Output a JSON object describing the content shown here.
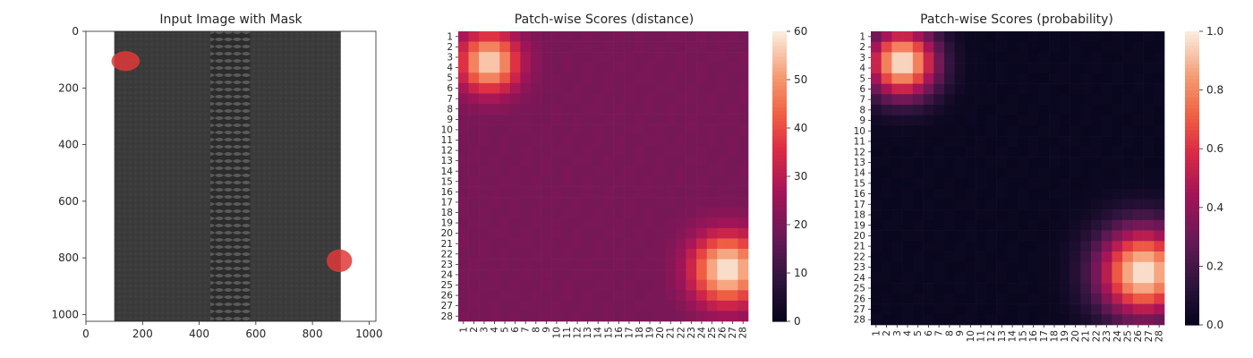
{
  "chart_data": [
    {
      "type": "image",
      "title": "Input Image with Mask",
      "xlim": [
        0,
        1024
      ],
      "ylim": [
        1024,
        0
      ],
      "xticks": [
        0,
        200,
        400,
        600,
        800,
        1000
      ],
      "yticks": [
        0,
        200,
        400,
        600,
        800,
        1000
      ],
      "image_extent": {
        "x_start": 100,
        "x_end": 900,
        "y_start": 0,
        "y_end": 1024
      },
      "colors": {
        "fabric": "#3b3b3b",
        "zipper_teeth": "#2a2a2a",
        "mask": "#e03a3a"
      },
      "mask_regions": [
        {
          "x": [
            90,
            190
          ],
          "y": [
            70,
            140
          ]
        },
        {
          "x": [
            850,
            940
          ],
          "y": [
            770,
            850
          ]
        }
      ]
    },
    {
      "type": "heatmap",
      "title": "Patch-wise Scores (distance)",
      "rows": 28,
      "cols": 28,
      "tick_labels": [
        "1",
        "2",
        "3",
        "4",
        "5",
        "6",
        "7",
        "8",
        "9",
        "10",
        "11",
        "12",
        "13",
        "14",
        "15",
        "16",
        "17",
        "18",
        "19",
        "20",
        "21",
        "22",
        "23",
        "24",
        "25",
        "26",
        "27",
        "28"
      ],
      "colorbar": {
        "min": 0,
        "max": 60,
        "ticks": [
          0,
          10,
          20,
          30,
          40,
          50,
          60
        ],
        "colormap": "rocket"
      },
      "background_value": 20,
      "hotspots": [
        {
          "row": 3.5,
          "col": 3.5,
          "peak": 58,
          "radius": 2.0
        },
        {
          "row": 23.5,
          "col": 26.5,
          "peak": 60,
          "radius": 2.4
        }
      ]
    },
    {
      "type": "heatmap",
      "title": "Patch-wise Scores (probability)",
      "rows": 28,
      "cols": 28,
      "tick_labels": [
        "1",
        "2",
        "3",
        "4",
        "5",
        "6",
        "7",
        "8",
        "9",
        "10",
        "11",
        "12",
        "13",
        "14",
        "15",
        "16",
        "17",
        "18",
        "19",
        "20",
        "21",
        "22",
        "23",
        "24",
        "25",
        "26",
        "27",
        "28"
      ],
      "colorbar": {
        "min": 0.0,
        "max": 1.0,
        "ticks": [
          0.0,
          0.2,
          0.4,
          0.6,
          0.8,
          1.0
        ],
        "tick_labels": [
          "0.0",
          "0.2",
          "0.4",
          "0.6",
          "0.8",
          "1.0"
        ],
        "colormap": "rocket"
      },
      "background_value": 0.02,
      "hotspots": [
        {
          "row": 3.5,
          "col": 3.5,
          "peak": 1.0,
          "radius": 2.3
        },
        {
          "row": 23.5,
          "col": 26.5,
          "peak": 1.0,
          "radius": 3.0
        }
      ]
    }
  ]
}
